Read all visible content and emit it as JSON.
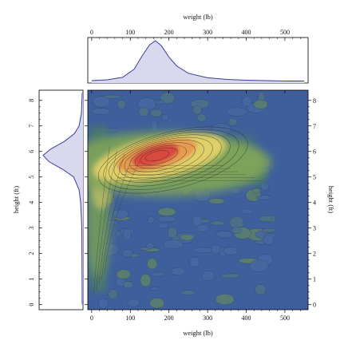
{
  "chart_data": {
    "type": "heatmap",
    "title": "",
    "xlabel": "weight (lb)",
    "ylabel": "height (ft)",
    "xlim": [
      -10,
      560
    ],
    "ylim": [
      -0.2,
      8.4
    ],
    "x_ticks": [
      0,
      100,
      200,
      300,
      400,
      500
    ],
    "y_ticks": [
      0,
      1,
      2,
      3,
      4,
      5,
      6,
      7,
      8
    ],
    "peak": {
      "weight": 165,
      "height": 5.85
    },
    "colors": {
      "background": "#3f5f9c",
      "low": "#4a7a6a",
      "mid_green": "#7fa45a",
      "yellow": "#e6d36a",
      "orange": "#e79a50",
      "red": "#d9453e",
      "marginal_line": "#3c3c9a",
      "marginal_fill": "#d8d8ee"
    },
    "marginal_weight": {
      "x": [
        0,
        40,
        80,
        110,
        130,
        150,
        165,
        180,
        200,
        220,
        250,
        300,
        350,
        400,
        450,
        500,
        550
      ],
      "density": [
        0.02,
        0.04,
        0.1,
        0.3,
        0.62,
        0.9,
        1.0,
        0.88,
        0.6,
        0.38,
        0.2,
        0.09,
        0.05,
        0.03,
        0.02,
        0.01,
        0.01
      ]
    },
    "marginal_height": {
      "y": [
        0,
        3,
        4,
        4.5,
        5,
        5.3,
        5.6,
        5.85,
        6.1,
        6.4,
        6.7,
        7,
        7.5,
        8.3
      ],
      "density": [
        0.0,
        0.01,
        0.04,
        0.08,
        0.22,
        0.5,
        0.85,
        1.0,
        0.8,
        0.45,
        0.2,
        0.08,
        0.02,
        0.0
      ]
    }
  }
}
